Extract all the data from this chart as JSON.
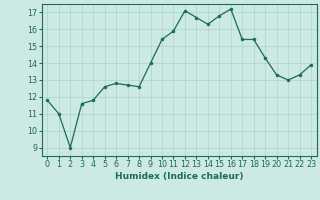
{
  "x": [
    0,
    1,
    2,
    3,
    4,
    5,
    6,
    7,
    8,
    9,
    10,
    11,
    12,
    13,
    14,
    15,
    16,
    17,
    18,
    19,
    20,
    21,
    22,
    23
  ],
  "y": [
    11.8,
    11.0,
    9.0,
    11.6,
    11.8,
    12.6,
    12.8,
    12.7,
    12.6,
    14.0,
    15.4,
    15.9,
    17.1,
    16.7,
    16.3,
    16.8,
    17.2,
    15.4,
    15.4,
    14.3,
    13.3,
    13.0,
    13.3,
    13.9
  ],
  "line_color": "#1a6b5a",
  "marker_color": "#1a6b5a",
  "bg_color": "#cce9e3",
  "grid_color": "#aad4cc",
  "xlabel": "Humidex (Indice chaleur)",
  "ylabel_ticks": [
    9,
    10,
    11,
    12,
    13,
    14,
    15,
    16,
    17
  ],
  "ylim": [
    8.5,
    17.5
  ],
  "xlim": [
    -0.5,
    23.5
  ],
  "xticks": [
    0,
    1,
    2,
    3,
    4,
    5,
    6,
    7,
    8,
    9,
    10,
    11,
    12,
    13,
    14,
    15,
    16,
    17,
    18,
    19,
    20,
    21,
    22,
    23
  ],
  "tick_fontsize": 5.8,
  "label_fontsize": 6.5
}
